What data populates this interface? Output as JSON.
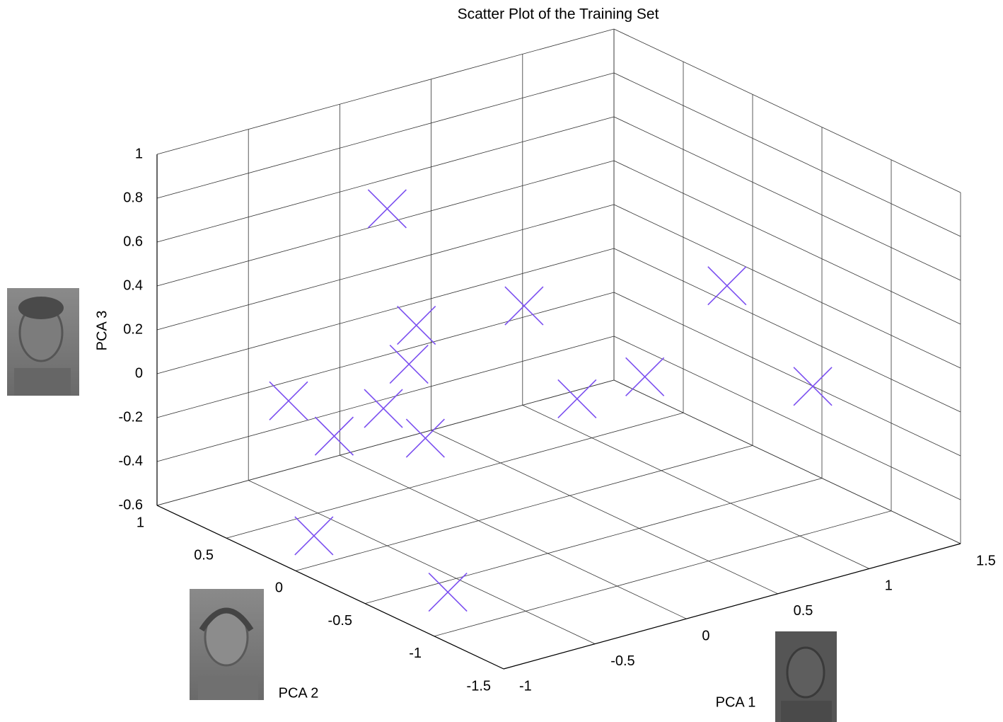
{
  "chart_data": {
    "type": "scatter3d",
    "title": "Scatter Plot of the Training Set",
    "xlabel": "PCA 1",
    "ylabel": "PCA 2",
    "zlabel": "PCA 3",
    "x": [
      -0.12,
      0.06,
      1.36,
      -0.15,
      -0.38,
      -0.47,
      -0.52,
      1.1,
      0.35,
      1.45,
      -0.41,
      -0.48,
      -0.68,
      -0.63
    ],
    "y": [
      0.5,
      -0.25,
      0,
      0.25,
      0,
      0.75,
      0,
      0.25,
      -0.25,
      -0.5,
      0.5,
      -0.25,
      0.29,
      -0.61
    ],
    "z": [
      0.7,
      0.44,
      0.16,
      0.25,
      0.2,
      -0.17,
      0.03,
      -0.27,
      -0.05,
      -0.17,
      -0.27,
      -0.04,
      -0.6,
      -0.6
    ],
    "color": "#7b4ff0",
    "xlim": [
      -1,
      1.5
    ],
    "ylim": [
      -1.5,
      1
    ],
    "zlim": [
      -0.6,
      1
    ],
    "xticks": [
      -1,
      -0.5,
      0,
      0.5,
      1,
      1.5
    ],
    "yticks": [
      -1.5,
      -1,
      -0.5,
      0,
      0.5,
      1
    ],
    "zticks": [
      -0.6,
      -0.4,
      -0.2,
      0,
      0.2,
      0.4,
      0.6,
      0.8,
      1
    ],
    "grid": true
  }
}
